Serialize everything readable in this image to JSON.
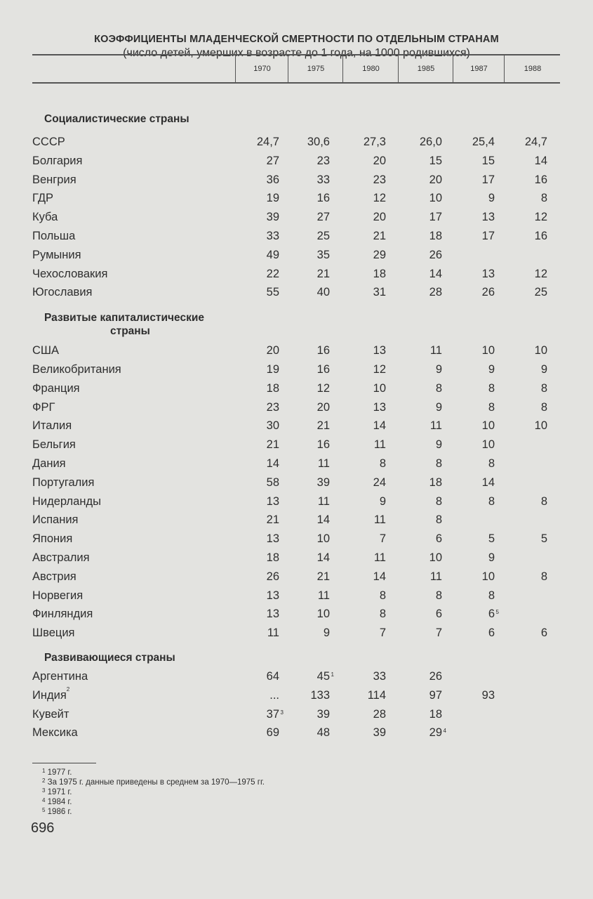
{
  "title": "КОЭФФИЦИЕНТЫ МЛАДЕНЧЕСКОЙ СМЕРТНОСТИ ПО ОТДЕЛЬНЫМ СТРАНАМ",
  "subtitle": "(число детей, умерших в возрасте до 1 года, на 1000 родившихся)",
  "columns": [
    "1970",
    "1975",
    "1980",
    "1985",
    "1987",
    "1988"
  ],
  "sections": [
    {
      "heading": "Социалистические страны",
      "rows": [
        {
          "name": "СССР",
          "cells": [
            "24,7",
            "30,6",
            "27,3",
            "26,0",
            "25,4",
            "24,7"
          ]
        },
        {
          "name": "Болгария",
          "cells": [
            "27",
            "23",
            "20",
            "15",
            "15",
            "14"
          ]
        },
        {
          "name": "Венгрия",
          "cells": [
            "36",
            "33",
            "23",
            "20",
            "17",
            "16"
          ]
        },
        {
          "name": "ГДР",
          "cells": [
            "19",
            "16",
            "12",
            "10",
            "9",
            "8"
          ]
        },
        {
          "name": "Куба",
          "cells": [
            "39",
            "27",
            "20",
            "17",
            "13",
            "12"
          ]
        },
        {
          "name": "Польша",
          "cells": [
            "33",
            "25",
            "21",
            "18",
            "17",
            "16"
          ]
        },
        {
          "name": "Румыния",
          "cells": [
            "49",
            "35",
            "29",
            "26",
            "",
            ""
          ]
        },
        {
          "name": "Чехословакия",
          "cells": [
            "22",
            "21",
            "18",
            "14",
            "13",
            "12"
          ]
        },
        {
          "name": "Югославия",
          "cells": [
            "55",
            "40",
            "31",
            "28",
            "26",
            "25"
          ]
        }
      ]
    },
    {
      "heading": "Развитые капиталистические",
      "heading2": "страны",
      "rows": [
        {
          "name": "США",
          "cells": [
            "20",
            "16",
            "13",
            "11",
            "10",
            "10"
          ]
        },
        {
          "name": "Великобритания",
          "cells": [
            "19",
            "16",
            "12",
            "9",
            "9",
            "9"
          ]
        },
        {
          "name": "Франция",
          "cells": [
            "18",
            "12",
            "10",
            "8",
            "8",
            "8"
          ]
        },
        {
          "name": "ФРГ",
          "cells": [
            "23",
            "20",
            "13",
            "9",
            "8",
            "8"
          ]
        },
        {
          "name": "Италия",
          "cells": [
            "30",
            "21",
            "14",
            "11",
            "10",
            "10"
          ]
        },
        {
          "name": "Бельгия",
          "cells": [
            "21",
            "16",
            "11",
            "9",
            "10",
            ""
          ]
        },
        {
          "name": "Дания",
          "cells": [
            "14",
            "11",
            "8",
            "8",
            "8",
            ""
          ]
        },
        {
          "name": "Португалия",
          "cells": [
            "58",
            "39",
            "24",
            "18",
            "14",
            ""
          ]
        },
        {
          "name": "Нидерланды",
          "cells": [
            "13",
            "11",
            "9",
            "8",
            "8",
            "8"
          ]
        },
        {
          "name": "Испания",
          "cells": [
            "21",
            "14",
            "11",
            "8",
            "",
            ""
          ]
        },
        {
          "name": "Япония",
          "cells": [
            "13",
            "10",
            "7",
            "6",
            "5",
            "5"
          ]
        },
        {
          "name": "Австралия",
          "cells": [
            "18",
            "14",
            "11",
            "10",
            "9",
            ""
          ]
        },
        {
          "name": "Австрия",
          "cells": [
            "26",
            "21",
            "14",
            "11",
            "10",
            "8"
          ]
        },
        {
          "name": "Норвегия",
          "cells": [
            "13",
            "11",
            "8",
            "8",
            "8",
            ""
          ]
        },
        {
          "name": "Финляндия",
          "cells": [
            "13",
            "10",
            "8",
            "6",
            {
              "v": "6",
              "note": "5"
            },
            ""
          ]
        },
        {
          "name": "Швеция",
          "cells": [
            "11",
            "9",
            "7",
            "7",
            "6",
            "6"
          ]
        }
      ]
    },
    {
      "heading": "Развивающиеся страны",
      "rows": [
        {
          "name": "Аргентина",
          "cells": [
            "64",
            {
              "v": "45",
              "note": "1"
            },
            "33",
            "26",
            "",
            ""
          ]
        },
        {
          "name": "Индия",
          "note": "2",
          "cells": [
            "...",
            "133",
            "114",
            "97",
            "93",
            ""
          ]
        },
        {
          "name": "Кувейт",
          "cells": [
            {
              "v": "37",
              "note": "3"
            },
            "39",
            "28",
            "18",
            "",
            ""
          ]
        },
        {
          "name": "Мексика",
          "cells": [
            "69",
            "48",
            "39",
            {
              "v": "29",
              "note": "4"
            },
            "",
            ""
          ]
        }
      ]
    }
  ],
  "footnotes": [
    {
      "mark": "1",
      "text": "1977 г."
    },
    {
      "mark": "2",
      "text": "За 1975 г. данные приведены в среднем за 1970—1975 гг."
    },
    {
      "mark": "3",
      "text": "1971 г."
    },
    {
      "mark": "4",
      "text": "1984 г."
    },
    {
      "mark": "5",
      "text": "1986 г."
    }
  ],
  "page_number": "696"
}
